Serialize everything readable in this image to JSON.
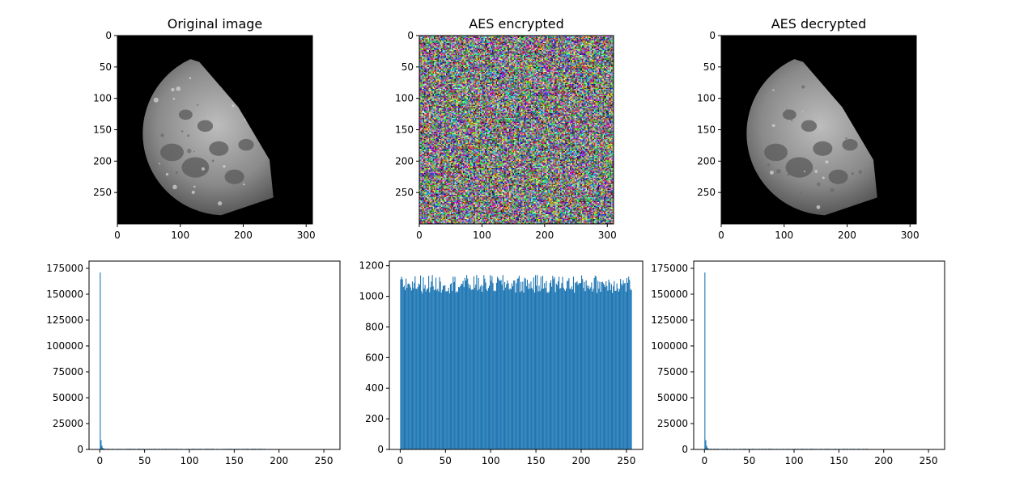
{
  "chart_data": [
    {
      "type": "image",
      "title": "Original image",
      "image_kind": "moon-grayscale",
      "xlim": [
        0,
        310
      ],
      "ylim": [
        300,
        0
      ],
      "xticks": [
        0,
        100,
        200,
        300
      ],
      "yticks": [
        0,
        50,
        100,
        150,
        200,
        250
      ]
    },
    {
      "type": "image",
      "title": "AES encrypted",
      "image_kind": "rgb-noise",
      "xlim": [
        0,
        310
      ],
      "ylim": [
        300,
        0
      ],
      "xticks": [
        0,
        100,
        200,
        300
      ],
      "yticks": [
        0,
        50,
        100,
        150,
        200,
        250
      ]
    },
    {
      "type": "image",
      "title": "AES decrypted",
      "image_kind": "moon-grayscale",
      "xlim": [
        0,
        310
      ],
      "ylim": [
        300,
        0
      ],
      "xticks": [
        0,
        100,
        200,
        300
      ],
      "yticks": [
        0,
        50,
        100,
        150,
        200,
        250
      ]
    },
    {
      "type": "histogram",
      "title": "",
      "bar_color": "#1f77b4",
      "xlim": [
        -12,
        268
      ],
      "ylim": [
        0,
        182000
      ],
      "xticks": [
        0,
        50,
        100,
        150,
        200,
        250
      ],
      "yticks": [
        0,
        25000,
        50000,
        75000,
        100000,
        125000,
        150000,
        175000
      ],
      "bins": [
        {
          "x": 0,
          "count": 171000
        },
        {
          "x": 1,
          "count": 9000
        },
        {
          "x": 2,
          "count": 3500
        },
        {
          "x": 3,
          "count": 1500
        },
        {
          "x": 4,
          "count": 900
        }
      ],
      "low_range": [
        5,
        184
      ],
      "low_count": 500
    },
    {
      "type": "histogram",
      "title": "",
      "bar_color": "#1f77b4",
      "xlim": [
        -12,
        268
      ],
      "ylim": [
        0,
        1230
      ],
      "xticks": [
        0,
        50,
        100,
        150,
        200,
        250
      ],
      "yticks": [
        0,
        200,
        400,
        600,
        800,
        1000,
        1200
      ],
      "uniform_range": [
        0,
        256
      ],
      "mean_count": 1080,
      "variation": 60,
      "max_count": 1170
    },
    {
      "type": "histogram",
      "title": "",
      "bar_color": "#1f77b4",
      "xlim": [
        -12,
        268
      ],
      "ylim": [
        0,
        182000
      ],
      "xticks": [
        0,
        50,
        100,
        150,
        200,
        250
      ],
      "yticks": [
        0,
        25000,
        50000,
        75000,
        100000,
        125000,
        150000,
        175000
      ],
      "bins": [
        {
          "x": 0,
          "count": 171000
        },
        {
          "x": 1,
          "count": 9000
        },
        {
          "x": 2,
          "count": 3500
        },
        {
          "x": 3,
          "count": 1500
        },
        {
          "x": 4,
          "count": 900
        }
      ],
      "low_range": [
        5,
        184
      ],
      "low_count": 500
    }
  ]
}
